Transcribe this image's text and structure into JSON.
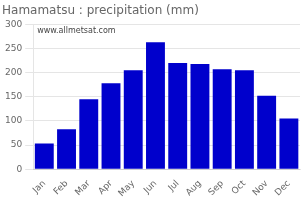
{
  "chart_data": {
    "type": "bar",
    "title": "Hamamatsu : precipitation (mm)",
    "categories": [
      "Jan",
      "Feb",
      "Mar",
      "Apr",
      "May",
      "Jun",
      "Jul",
      "Aug",
      "Sep",
      "Oct",
      "Nov",
      "Dec"
    ],
    "values": [
      53,
      83,
      145,
      178,
      205,
      263,
      220,
      218,
      207,
      205,
      152,
      105
    ],
    "color": "#0000cc",
    "ylim": [
      0,
      300
    ],
    "yticks": [
      0,
      50,
      100,
      150,
      200,
      250,
      300
    ],
    "grid": true,
    "annotation": "www.allmetsat.com"
  }
}
